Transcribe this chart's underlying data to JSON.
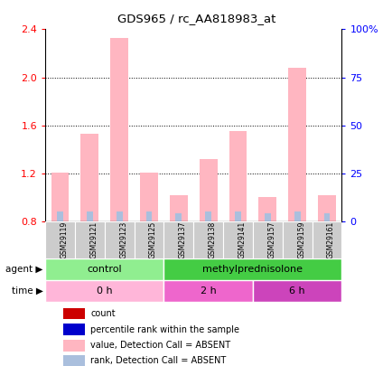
{
  "title": "GDS965 / rc_AA818983_at",
  "samples": [
    "GSM29119",
    "GSM29121",
    "GSM29123",
    "GSM29125",
    "GSM29137",
    "GSM29138",
    "GSM29141",
    "GSM29157",
    "GSM29159",
    "GSM29161"
  ],
  "bar_values": [
    1.21,
    1.53,
    2.33,
    1.21,
    1.02,
    1.32,
    1.55,
    1.0,
    2.08,
    1.02
  ],
  "rank_values_abs": [
    0.08,
    0.08,
    0.08,
    0.08,
    0.07,
    0.08,
    0.08,
    0.07,
    0.08,
    0.07
  ],
  "ylim_left": [
    0.8,
    2.4
  ],
  "ylim_right": [
    0,
    100
  ],
  "yticks_left": [
    0.8,
    1.2,
    1.6,
    2.0,
    2.4
  ],
  "yticks_right": [
    0,
    25,
    50,
    75,
    100
  ],
  "ytick_labels_right": [
    "0",
    "25",
    "50",
    "75",
    "100%"
  ],
  "bar_color": "#FFB6C1",
  "rank_color": "#AABFDD",
  "agent_groups": [
    {
      "label": "control",
      "start": 0,
      "end": 4,
      "color": "#90EE90"
    },
    {
      "label": "methylprednisolone",
      "start": 4,
      "end": 10,
      "color": "#44CC44"
    }
  ],
  "time_groups": [
    {
      "label": "0 h",
      "start": 0,
      "end": 4,
      "color": "#FFB6D9"
    },
    {
      "label": "2 h",
      "start": 4,
      "end": 7,
      "color": "#EE66CC"
    },
    {
      "label": "6 h",
      "start": 7,
      "end": 10,
      "color": "#CC44BB"
    }
  ],
  "agent_label": "agent",
  "time_label": "time",
  "legend_items": [
    {
      "label": "count",
      "color": "#CC0000"
    },
    {
      "label": "percentile rank within the sample",
      "color": "#0000CC"
    },
    {
      "label": "value, Detection Call = ABSENT",
      "color": "#FFB6C1"
    },
    {
      "label": "rank, Detection Call = ABSENT",
      "color": "#AABFDD"
    }
  ],
  "sample_bg_color": "#CCCCCC",
  "fig_bg": "#FFFFFF"
}
